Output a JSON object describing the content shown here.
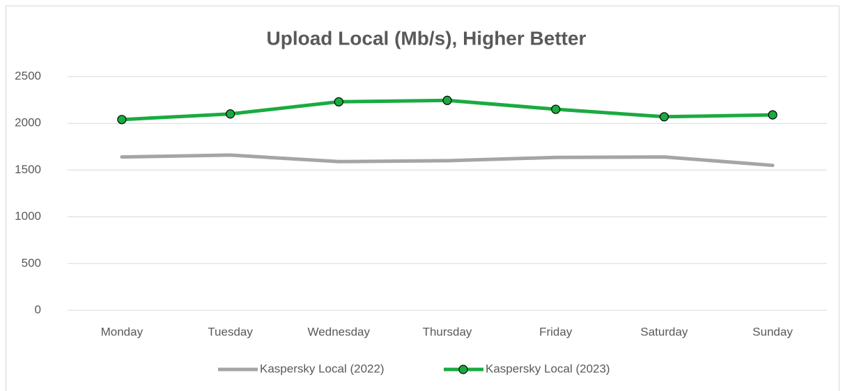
{
  "chart_data": {
    "type": "line",
    "title": "Upload Local (Mb/s), Higher Better",
    "categories": [
      "Monday",
      "Tuesday",
      "Wednesday",
      "Thursday",
      "Friday",
      "Saturday",
      "Sunday"
    ],
    "series": [
      {
        "name": "Kaspersky Local (2022)",
        "color": "#a5a5a5",
        "marker": false,
        "values": [
          1640,
          1660,
          1590,
          1600,
          1635,
          1640,
          1550
        ]
      },
      {
        "name": "Kaspersky Local (2023)",
        "color": "#1aab40",
        "marker": true,
        "values": [
          2040,
          2100,
          2230,
          2245,
          2150,
          2070,
          2090
        ]
      }
    ],
    "ylim": [
      0,
      2500
    ],
    "yticks": [
      0,
      500,
      1000,
      1500,
      2000,
      2500
    ],
    "grid": true,
    "legend": "bottom"
  }
}
